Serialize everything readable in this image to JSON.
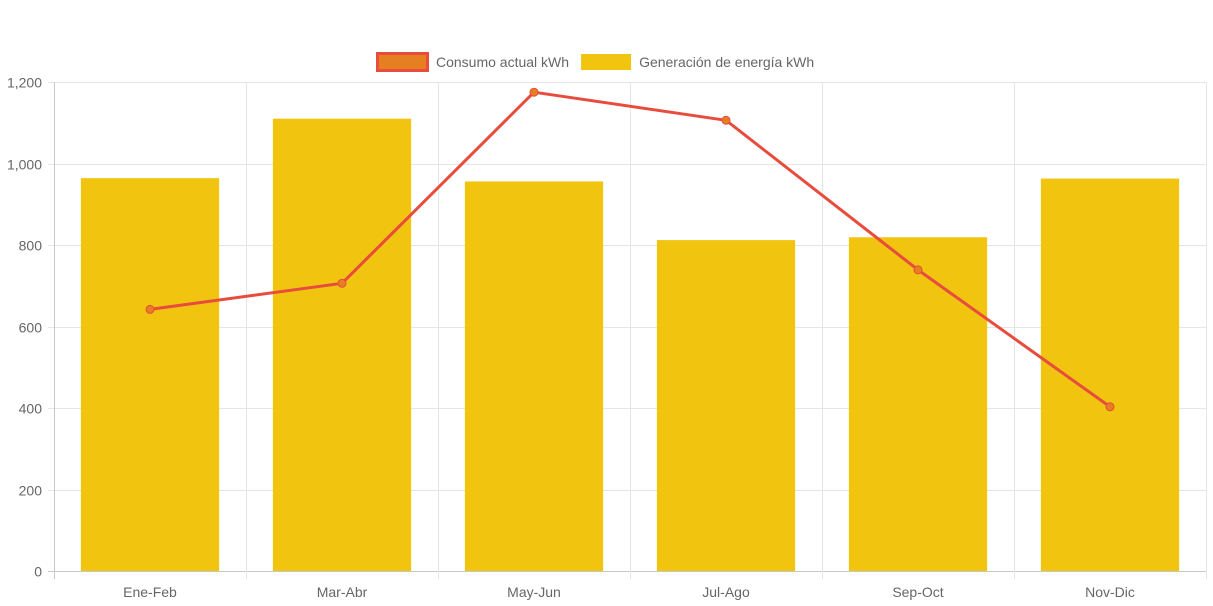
{
  "chart_data": {
    "type": "bar",
    "categories": [
      "Ene-Feb",
      "Mar-Abr",
      "May-Jun",
      "Jul-Ago",
      "Sep-Oct",
      "Nov-Dic"
    ],
    "series": [
      {
        "name": "Consumo actual kWh",
        "type": "line",
        "values": [
          642,
          706,
          1175,
          1106,
          739,
          403
        ],
        "color": "#e74c3c",
        "point_color": "#e67e22"
      },
      {
        "name": "Generación de energía kWh",
        "type": "bar",
        "values": [
          964,
          1110,
          956,
          812,
          819,
          963
        ],
        "color": "#f1c40f"
      }
    ],
    "ylim": [
      0,
      1200
    ],
    "yticks": [
      "0",
      "200",
      "400",
      "600",
      "800",
      "1,000",
      "1,200"
    ],
    "grid": true,
    "legend_position": "top-center"
  }
}
